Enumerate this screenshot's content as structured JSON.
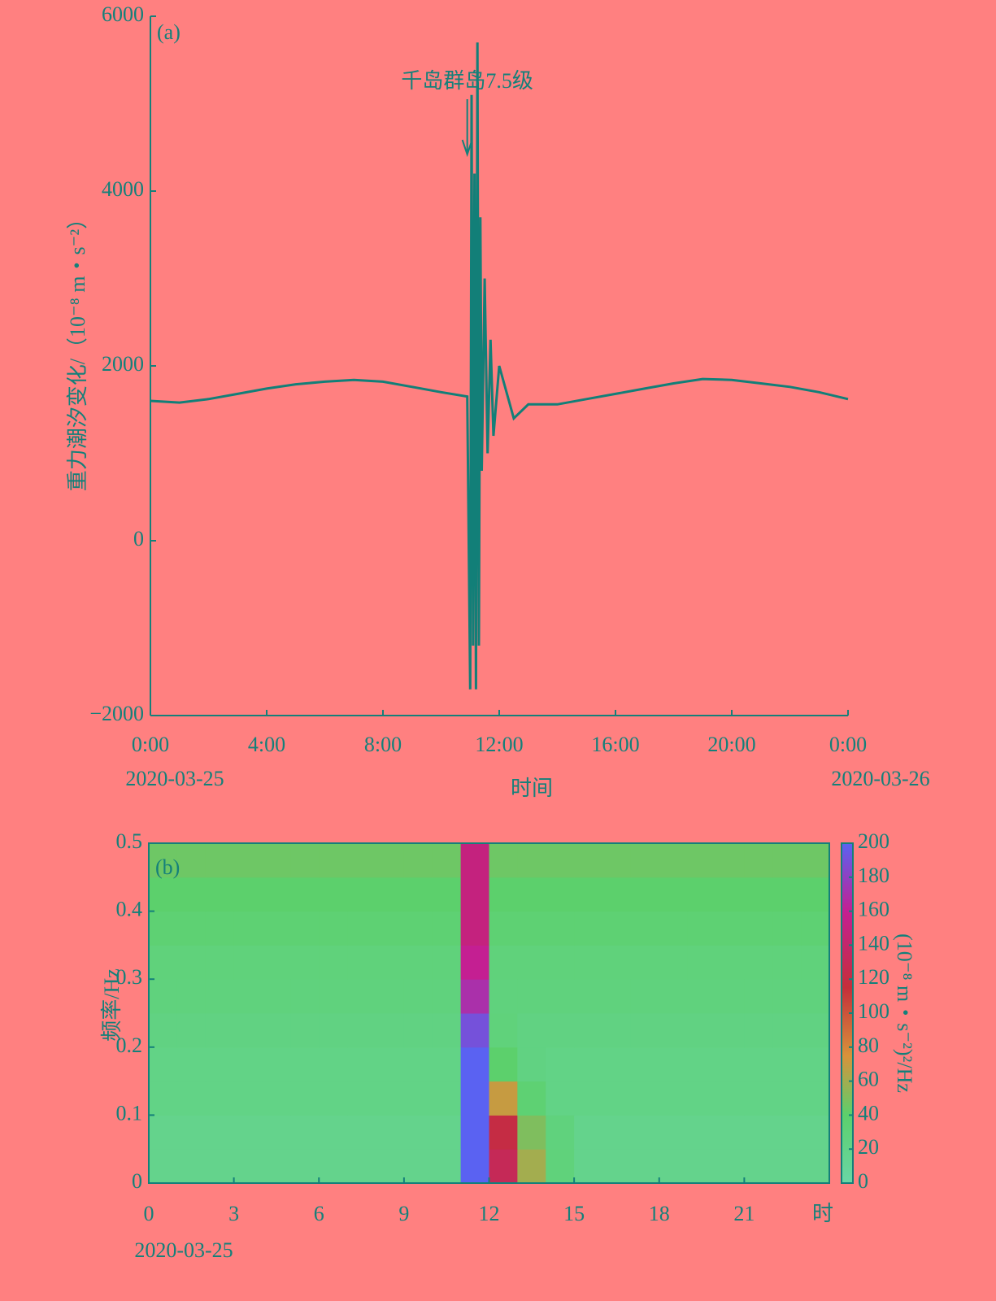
{
  "chart_data": [
    {
      "type": "line",
      "panel_label": "(a)",
      "y_label": "重力潮汐变化/（10⁻⁸ m・s⁻²）",
      "x_label": "时间",
      "annotation": {
        "text": "千岛群岛7.5级",
        "x": 10.9
      },
      "x": [
        0,
        1,
        2,
        3,
        4,
        5,
        6,
        7,
        8,
        9,
        10,
        10.9,
        11.0,
        11.05,
        11.1,
        11.15,
        11.2,
        11.25,
        11.3,
        11.35,
        11.4,
        11.5,
        11.6,
        11.7,
        11.8,
        12,
        12.5,
        13,
        14,
        15,
        16,
        17,
        18,
        19,
        20,
        21,
        22,
        23,
        24
      ],
      "values": [
        1600,
        1580,
        1620,
        1680,
        1740,
        1790,
        1820,
        1840,
        1820,
        1760,
        1700,
        1650,
        -1700,
        5100,
        -1200,
        4200,
        -1700,
        5700,
        -1200,
        3700,
        800,
        3000,
        1000,
        2300,
        1200,
        2000,
        1400,
        1560,
        1560,
        1620,
        1680,
        1740,
        1800,
        1850,
        1840,
        1800,
        1760,
        1700,
        1620
      ],
      "color": "#127f78",
      "xlim": [
        0,
        24
      ],
      "xticks": [
        {
          "value": 0,
          "label": "0:00"
        },
        {
          "value": 4,
          "label": "4:00"
        },
        {
          "value": 8,
          "label": "8:00"
        },
        {
          "value": 12,
          "label": "12:00"
        },
        {
          "value": 16,
          "label": "16:00"
        },
        {
          "value": 20,
          "label": "20:00"
        },
        {
          "value": 24,
          "label": "0:00"
        }
      ],
      "date_labels": [
        {
          "value": 0,
          "label": "2020-03-25"
        },
        {
          "value": 24,
          "label": "2020-03-26"
        }
      ],
      "ylim": [
        -2000,
        6000
      ],
      "yticks": [
        {
          "value": -2000,
          "label": "−2000"
        },
        0,
        2000,
        4000,
        6000
      ]
    },
    {
      "type": "heatmap",
      "panel_label": "(b)",
      "y_label": "频率/Hz",
      "colorbar_label": "(10⁻⁸ m・s⁻²)²/Hz",
      "x": [
        0,
        1,
        2,
        3,
        4,
        5,
        6,
        7,
        8,
        9,
        10,
        11,
        12,
        13,
        14,
        15,
        16,
        17,
        18,
        19,
        20,
        21,
        22,
        23
      ],
      "y": [
        0,
        0.05,
        0.1,
        0.15,
        0.2,
        0.25,
        0.3,
        0.35,
        0.4,
        0.45
      ],
      "z": [
        [
          18,
          18,
          18,
          18,
          18,
          18,
          18,
          18,
          18,
          18,
          18,
          200,
          130,
          60,
          30,
          18,
          18,
          18,
          18,
          18,
          18,
          18,
          18,
          18
        ],
        [
          18,
          18,
          18,
          18,
          18,
          18,
          18,
          18,
          18,
          18,
          18,
          200,
          120,
          50,
          28,
          18,
          18,
          18,
          18,
          18,
          18,
          18,
          18,
          18
        ],
        [
          22,
          22,
          22,
          22,
          22,
          22,
          22,
          22,
          22,
          22,
          22,
          200,
          70,
          35,
          22,
          22,
          22,
          22,
          22,
          22,
          22,
          22,
          22,
          22
        ],
        [
          22,
          22,
          22,
          22,
          22,
          22,
          22,
          22,
          22,
          22,
          22,
          200,
          40,
          25,
          22,
          22,
          22,
          22,
          22,
          22,
          22,
          22,
          22,
          22
        ],
        [
          25,
          25,
          25,
          25,
          25,
          25,
          25,
          25,
          25,
          25,
          25,
          190,
          30,
          25,
          25,
          25,
          25,
          25,
          25,
          25,
          25,
          25,
          25,
          25
        ],
        [
          28,
          28,
          28,
          28,
          28,
          28,
          28,
          28,
          28,
          28,
          28,
          170,
          28,
          28,
          28,
          28,
          28,
          28,
          28,
          28,
          28,
          28,
          28,
          28
        ],
        [
          30,
          30,
          30,
          30,
          30,
          30,
          30,
          30,
          30,
          30,
          30,
          160,
          30,
          30,
          30,
          30,
          30,
          30,
          30,
          30,
          30,
          30,
          30,
          30
        ],
        [
          35,
          35,
          35,
          35,
          35,
          35,
          35,
          35,
          35,
          35,
          35,
          150,
          35,
          35,
          35,
          35,
          35,
          35,
          35,
          35,
          35,
          35,
          35,
          35
        ],
        [
          40,
          40,
          40,
          40,
          40,
          40,
          40,
          40,
          40,
          40,
          40,
          150,
          40,
          40,
          40,
          40,
          40,
          40,
          40,
          40,
          40,
          40,
          40,
          40
        ],
        [
          45,
          45,
          45,
          45,
          45,
          45,
          45,
          45,
          45,
          45,
          45,
          150,
          45,
          45,
          45,
          45,
          45,
          45,
          45,
          45,
          45,
          45,
          45,
          45
        ]
      ],
      "xlim": [
        0,
        24
      ],
      "xticks": [
        0,
        3,
        6,
        9,
        12,
        15,
        18,
        21
      ],
      "x_unit": "时",
      "date_label": "2020-03-25",
      "ylim": [
        0,
        0.5
      ],
      "yticks": [
        0,
        0.1,
        0.2,
        0.3,
        0.4,
        0.5
      ],
      "zlim": [
        0,
        200
      ],
      "zticks": [
        0,
        20,
        40,
        60,
        80,
        100,
        120,
        140,
        160,
        180,
        200
      ],
      "colorscale": [
        {
          "value": 0,
          "color": "#6ad6a6"
        },
        {
          "value": 40,
          "color": "#5cd06c"
        },
        {
          "value": 75,
          "color": "#d8923a"
        },
        {
          "value": 115,
          "color": "#c52e3a"
        },
        {
          "value": 160,
          "color": "#c41f92"
        },
        {
          "value": 200,
          "color": "#5a62f2"
        }
      ]
    }
  ]
}
